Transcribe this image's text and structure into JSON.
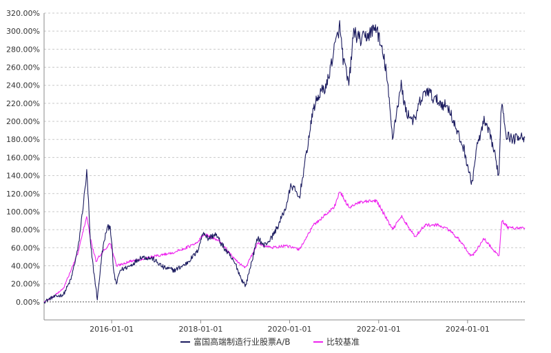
{
  "chart_data": {
    "type": "line",
    "title": "",
    "xlabel": "",
    "ylabel": "",
    "x_ticks": [
      "2016-01-01",
      "2018-01-01",
      "2020-01-01",
      "2022-01-01",
      "2024-01-01"
    ],
    "x_range": [
      "2014-06-25",
      "2025-04-15"
    ],
    "y_ticks": [
      "0.00%",
      "20.00%",
      "40.00%",
      "60.00%",
      "80.00%",
      "100.00%",
      "120.00%",
      "140.00%",
      "160.00%",
      "180.00%",
      "200.00%",
      "220.00%",
      "240.00%",
      "260.00%",
      "280.00%",
      "300.00%",
      "320.00%"
    ],
    "ylim": [
      -20,
      320
    ],
    "y_unit": "%",
    "grid": "horizontal-dashed",
    "legend_position": "bottom-center",
    "series": [
      {
        "name": "富国高端制造行业股票A/B",
        "color": "#1a1a5e",
        "points": [
          [
            "2014-06-25",
            0
          ],
          [
            "2014-09-01",
            5
          ],
          [
            "2014-12-01",
            8
          ],
          [
            "2015-02-01",
            25
          ],
          [
            "2015-04-01",
            60
          ],
          [
            "2015-05-15",
            110
          ],
          [
            "2015-06-10",
            143
          ],
          [
            "2015-06-25",
            110
          ],
          [
            "2015-07-10",
            65
          ],
          [
            "2015-08-01",
            40
          ],
          [
            "2015-08-20",
            20
          ],
          [
            "2015-09-05",
            3
          ],
          [
            "2015-10-15",
            55
          ],
          [
            "2015-11-20",
            80
          ],
          [
            "2015-12-20",
            85
          ],
          [
            "2016-01-20",
            30
          ],
          [
            "2016-02-10",
            20
          ],
          [
            "2016-03-10",
            35
          ],
          [
            "2016-06-01",
            40
          ],
          [
            "2016-09-01",
            50
          ],
          [
            "2016-12-01",
            48
          ],
          [
            "2017-03-01",
            38
          ],
          [
            "2017-06-01",
            35
          ],
          [
            "2017-09-01",
            42
          ],
          [
            "2017-12-01",
            55
          ],
          [
            "2018-01-25",
            78
          ],
          [
            "2018-03-01",
            70
          ],
          [
            "2018-05-01",
            75
          ],
          [
            "2018-07-01",
            62
          ],
          [
            "2018-09-01",
            50
          ],
          [
            "2018-10-20",
            40
          ],
          [
            "2018-12-01",
            25
          ],
          [
            "2019-01-05",
            18
          ],
          [
            "2019-02-15",
            40
          ],
          [
            "2019-04-15",
            72
          ],
          [
            "2019-06-01",
            62
          ],
          [
            "2019-08-01",
            70
          ],
          [
            "2019-10-01",
            85
          ],
          [
            "2019-12-01",
            105
          ],
          [
            "2020-01-15",
            130
          ],
          [
            "2020-03-20",
            115
          ],
          [
            "2020-05-01",
            150
          ],
          [
            "2020-07-15",
            215
          ],
          [
            "2020-09-01",
            230
          ],
          [
            "2020-11-01",
            240
          ],
          [
            "2021-01-01",
            280
          ],
          [
            "2021-02-15",
            305
          ],
          [
            "2021-03-15",
            270
          ],
          [
            "2021-05-01",
            240
          ],
          [
            "2021-06-10",
            300
          ],
          [
            "2021-08-01",
            290
          ],
          [
            "2021-10-01",
            295
          ],
          [
            "2021-12-15",
            305
          ],
          [
            "2022-01-15",
            285
          ],
          [
            "2022-03-01",
            260
          ],
          [
            "2022-04-25",
            182
          ],
          [
            "2022-05-15",
            200
          ],
          [
            "2022-07-05",
            240
          ],
          [
            "2022-08-15",
            210
          ],
          [
            "2022-10-25",
            200
          ],
          [
            "2022-12-01",
            220
          ],
          [
            "2023-02-01",
            235
          ],
          [
            "2023-04-01",
            225
          ],
          [
            "2023-06-01",
            220
          ],
          [
            "2023-08-01",
            215
          ],
          [
            "2023-10-01",
            190
          ],
          [
            "2023-12-01",
            170
          ],
          [
            "2024-02-05",
            130
          ],
          [
            "2024-03-15",
            170
          ],
          [
            "2024-05-15",
            200
          ],
          [
            "2024-07-15",
            180
          ],
          [
            "2024-09-15",
            140
          ],
          [
            "2024-09-30",
            210
          ],
          [
            "2024-10-10",
            222
          ],
          [
            "2024-11-15",
            185
          ],
          [
            "2025-01-15",
            180
          ],
          [
            "2025-03-01",
            185
          ],
          [
            "2025-04-15",
            182
          ]
        ]
      },
      {
        "name": "比较基准",
        "color": "#ee22ee",
        "points": [
          [
            "2014-06-25",
            0
          ],
          [
            "2014-09-01",
            5
          ],
          [
            "2014-12-01",
            15
          ],
          [
            "2015-02-01",
            35
          ],
          [
            "2015-04-01",
            55
          ],
          [
            "2015-06-10",
            95
          ],
          [
            "2015-07-10",
            70
          ],
          [
            "2015-08-25",
            45
          ],
          [
            "2015-10-15",
            55
          ],
          [
            "2015-12-20",
            65
          ],
          [
            "2016-02-10",
            40
          ],
          [
            "2016-06-01",
            45
          ],
          [
            "2016-12-01",
            50
          ],
          [
            "2017-06-01",
            55
          ],
          [
            "2017-12-01",
            65
          ],
          [
            "2018-01-25",
            75
          ],
          [
            "2018-06-01",
            68
          ],
          [
            "2018-10-20",
            45
          ],
          [
            "2019-01-05",
            38
          ],
          [
            "2019-04-15",
            65
          ],
          [
            "2019-08-01",
            60
          ],
          [
            "2019-12-01",
            62
          ],
          [
            "2020-03-20",
            58
          ],
          [
            "2020-07-15",
            85
          ],
          [
            "2021-01-01",
            105
          ],
          [
            "2021-02-15",
            122
          ],
          [
            "2021-05-01",
            105
          ],
          [
            "2021-08-01",
            110
          ],
          [
            "2021-12-15",
            112
          ],
          [
            "2022-04-25",
            80
          ],
          [
            "2022-07-05",
            95
          ],
          [
            "2022-10-25",
            72
          ],
          [
            "2023-01-15",
            85
          ],
          [
            "2023-05-01",
            85
          ],
          [
            "2023-08-01",
            80
          ],
          [
            "2023-10-15",
            70
          ],
          [
            "2024-02-05",
            50
          ],
          [
            "2024-05-15",
            70
          ],
          [
            "2024-09-15",
            50
          ],
          [
            "2024-10-08",
            90
          ],
          [
            "2024-12-01",
            82
          ],
          [
            "2025-04-15",
            82
          ]
        ]
      }
    ]
  }
}
